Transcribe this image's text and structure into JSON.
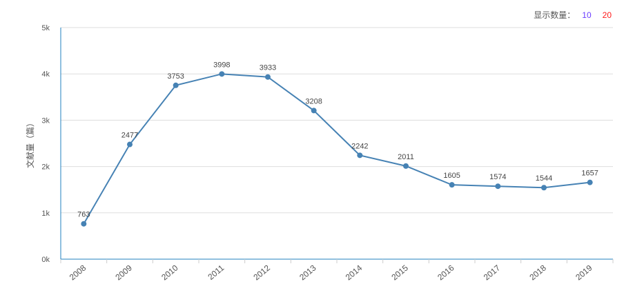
{
  "controls": {
    "label": "显示数量：",
    "options": [
      {
        "label": "10",
        "color": "#6a3cff"
      },
      {
        "label": "20",
        "color": "#ff1a1a"
      }
    ]
  },
  "chart_data": {
    "type": "line",
    "title": "",
    "xlabel": "",
    "ylabel": "文献量（篇）",
    "categories": [
      "2008",
      "2009",
      "2010",
      "2011",
      "2012",
      "2013",
      "2014",
      "2015",
      "2016",
      "2017",
      "2018",
      "2019"
    ],
    "values": [
      763,
      2477,
      3753,
      3998,
      3933,
      3208,
      2242,
      2011,
      1605,
      1574,
      1544,
      1657
    ],
    "ylim": [
      0,
      5000
    ],
    "yticks": [
      "0k",
      "1k",
      "2k",
      "3k",
      "4k",
      "5k"
    ],
    "grid": true,
    "color": "#4682b4"
  }
}
